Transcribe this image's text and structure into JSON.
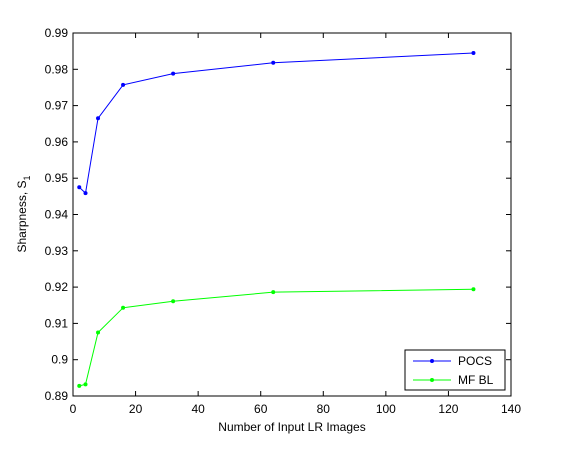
{
  "chart_data": {
    "type": "line",
    "xlabel": "Number of Input LR Images",
    "ylabel": "Sharpness, S",
    "ylabel_subscript": "1",
    "xlim": [
      0,
      140
    ],
    "ylim": [
      0.89,
      0.99
    ],
    "xticks": [
      "0",
      "20",
      "40",
      "60",
      "80",
      "100",
      "120",
      "140"
    ],
    "yticks": [
      "0.89",
      "0.9",
      "0.91",
      "0.92",
      "0.93",
      "0.94",
      "0.95",
      "0.96",
      "0.97",
      "0.98",
      "0.99"
    ],
    "grid": false,
    "legend_position": "bottom-right",
    "series": [
      {
        "name": "POCS",
        "color": "#0000ff",
        "x": [
          2,
          4,
          8,
          16,
          32,
          64,
          128
        ],
        "y": [
          0.9475,
          0.9459,
          0.9665,
          0.9757,
          0.9788,
          0.9818,
          0.9845
        ]
      },
      {
        "name": "MF BL",
        "color": "#00ff00",
        "x": [
          2,
          4,
          8,
          16,
          32,
          64,
          128
        ],
        "y": [
          0.8928,
          0.8932,
          0.9075,
          0.9143,
          0.9161,
          0.9186,
          0.9194
        ]
      }
    ]
  }
}
